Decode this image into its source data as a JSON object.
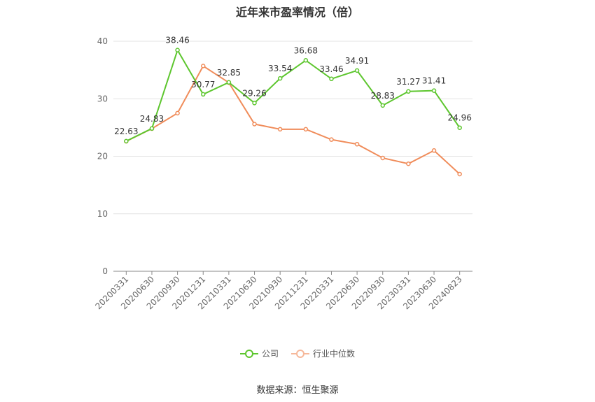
{
  "chart_data": {
    "type": "line",
    "title": "近年来市盈率情况（倍）",
    "categories": [
      "20200331",
      "20200630",
      "20200930",
      "20201231",
      "20210331",
      "20210630",
      "20210930",
      "20211231",
      "20220331",
      "20220630",
      "20220930",
      "20230331",
      "20230630",
      "20240823"
    ],
    "series": [
      {
        "name": "公司",
        "color": "#5dc62e",
        "values": [
          22.63,
          24.83,
          38.46,
          30.77,
          32.85,
          29.26,
          33.54,
          36.68,
          33.46,
          34.91,
          28.83,
          31.27,
          31.41,
          24.96
        ],
        "labels": [
          "22.63",
          "24.83",
          "38.46",
          "30.77",
          "32.85",
          "29.26",
          "33.54",
          "36.68",
          "33.46",
          "34.91",
          "28.83",
          "31.27",
          "31.41",
          "24.96"
        ]
      },
      {
        "name": "行业中位数",
        "color": "#f08c5a",
        "values": [
          22.6,
          24.8,
          27.5,
          35.7,
          32.8,
          25.6,
          24.7,
          24.7,
          22.9,
          22.1,
          19.7,
          18.7,
          21.0,
          16.9
        ]
      }
    ],
    "ylim": [
      0,
      40
    ],
    "yticks": [
      0,
      10,
      20,
      30,
      40
    ],
    "grid": true,
    "legend_position": "bottom"
  },
  "source": "数据来源：恒生聚源"
}
